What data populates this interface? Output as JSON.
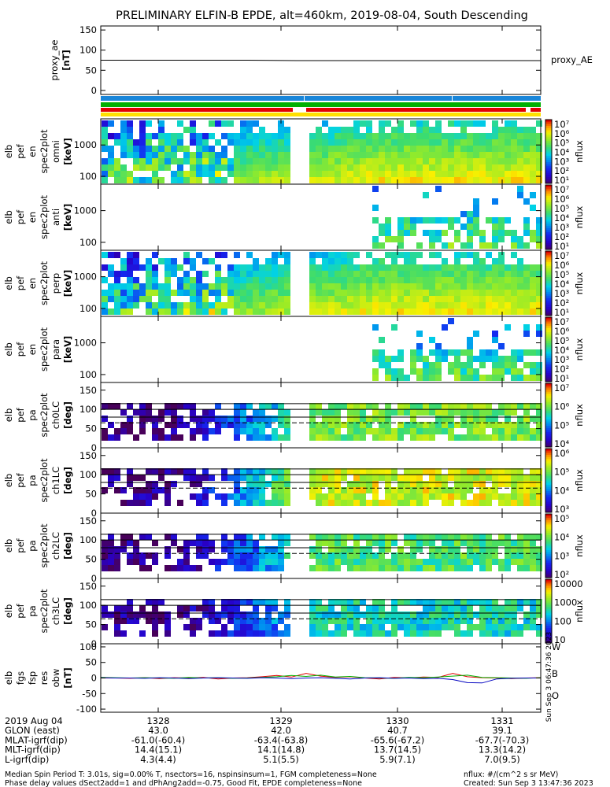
{
  "title": "PRELIMINARY ELFIN-B EPDE, alt=460km, 2019-08-04, South Descending",
  "colors": {
    "red": "#e00000",
    "green": "#00b000",
    "blue": "#0000c0",
    "bar_blue": "#1a86d9",
    "bar_yellow": "#ffe000"
  },
  "chart_data": [
    {
      "type": "line",
      "ylabel": [
        "proxy_ae",
        "[nT]"
      ],
      "yticks": [
        "150",
        "100",
        "50",
        "0"
      ],
      "ylim": [
        -10,
        160
      ],
      "series": [
        {
          "name": "proxy_AE",
          "values": [
            75,
            75,
            75,
            75,
            74,
            74,
            74,
            74,
            74,
            74
          ]
        }
      ],
      "legend": "proxy_AE"
    },
    {
      "type": "heatmap",
      "ylabel": [
        "elb",
        "pef",
        "en",
        "spec2plot",
        "omni",
        "[keV]"
      ],
      "yticks": [
        "1000",
        "100"
      ],
      "colorbar": {
        "label": "nflux",
        "ticks": [
          "10⁷",
          "10⁶",
          "10⁵",
          "10⁴",
          "10³",
          "10²",
          "10¹"
        ]
      }
    },
    {
      "type": "heatmap",
      "ylabel": [
        "elb",
        "pef",
        "en",
        "spec2plot",
        "anti",
        "[keV]"
      ],
      "yticks": [
        "1000",
        "100"
      ],
      "colorbar": {
        "label": "nflux",
        "ticks": [
          "10⁷",
          "10⁶",
          "10⁵",
          "10⁴",
          "10³",
          "10²",
          "10¹"
        ]
      }
    },
    {
      "type": "heatmap",
      "ylabel": [
        "elb",
        "pef",
        "en",
        "spec2plot",
        "perp",
        "[keV]"
      ],
      "yticks": [
        "1000",
        "100"
      ],
      "colorbar": {
        "label": "nflux",
        "ticks": [
          "10⁷",
          "10⁶",
          "10⁵",
          "10⁴",
          "10³",
          "10²",
          "10¹"
        ]
      }
    },
    {
      "type": "heatmap",
      "ylabel": [
        "elb",
        "pef",
        "en",
        "spec2plot",
        "para",
        "[keV]"
      ],
      "yticks": [
        "1000",
        "100"
      ],
      "colorbar": {
        "label": "nflux",
        "ticks": [
          "10⁷",
          "10⁶",
          "10⁵",
          "10⁴",
          "10³",
          "10²",
          "10¹"
        ]
      }
    },
    {
      "type": "heatmap",
      "ylabel": [
        "elb",
        "pef",
        "pa",
        "spec2plot",
        "ch0LC",
        "[deg]"
      ],
      "yticks": [
        "150",
        "100",
        "50",
        "0"
      ],
      "colorbar": {
        "label": "nflux",
        "ticks": [
          "10⁷",
          "10⁶",
          "10⁵",
          "10⁴"
        ]
      }
    },
    {
      "type": "heatmap",
      "ylabel": [
        "elb",
        "pef",
        "pa",
        "spec2plot",
        "ch1LC",
        "[deg]"
      ],
      "yticks": [
        "150",
        "100",
        "50",
        "0"
      ],
      "colorbar": {
        "label": "nflux",
        "ticks": [
          "10⁶",
          "10⁵",
          "10⁴",
          "10³"
        ]
      }
    },
    {
      "type": "heatmap",
      "ylabel": [
        "elb",
        "pef",
        "pa",
        "spec2plot",
        "ch2LC",
        "[deg]"
      ],
      "yticks": [
        "150",
        "100",
        "50",
        "0"
      ],
      "colorbar": {
        "label": "nflux",
        "ticks": [
          "10⁵",
          "10⁴",
          "10³",
          "10²"
        ]
      }
    },
    {
      "type": "heatmap",
      "ylabel": [
        "elb",
        "pef",
        "pa",
        "spec2plot",
        "ch3LC",
        "[deg]"
      ],
      "yticks": [
        "150",
        "100",
        "50",
        "0"
      ],
      "colorbar": {
        "label": "nflux",
        "ticks": [
          "10000",
          "1000",
          "100",
          "10"
        ]
      }
    },
    {
      "type": "line",
      "ylabel": [
        "elb",
        "fgs",
        "fsp",
        "res",
        "obw",
        "[nT]"
      ],
      "yticks": [
        "100",
        "50",
        "0",
        "-50",
        "-100"
      ],
      "ylim": [
        -110,
        110
      ],
      "series": [
        {
          "name": "W",
          "color": "#e00000",
          "values": [
            0,
            0,
            -1,
            1,
            -2,
            1,
            0,
            2,
            -3,
            0,
            1,
            4,
            8,
            3,
            15,
            6,
            2,
            4,
            0,
            -3,
            2,
            0,
            3,
            2,
            15,
            4,
            1,
            0,
            -2,
            0,
            1
          ]
        },
        {
          "name": "B",
          "color": "#00b000",
          "values": [
            2,
            1,
            0,
            1,
            0,
            -1,
            2,
            0,
            1,
            -1,
            0,
            2,
            4,
            8,
            5,
            9,
            3,
            5,
            1,
            0,
            -1,
            2,
            1,
            3,
            6,
            9,
            2,
            1,
            0,
            -1,
            1
          ]
        },
        {
          "name": "O",
          "color": "#0000c0",
          "values": [
            1,
            0,
            0,
            -1,
            1,
            0,
            -2,
            0,
            1,
            0,
            -1,
            1,
            0,
            -2,
            0,
            1,
            -1,
            -3,
            0,
            1,
            -1,
            0,
            -2,
            -1,
            -5,
            -15,
            -16,
            -3,
            -1,
            0,
            0
          ]
        }
      ],
      "legend": [
        "W",
        "B",
        "O"
      ]
    }
  ],
  "xaxis": {
    "ticks": [
      "1328",
      "1329",
      "1330",
      "1331"
    ],
    "rows": [
      {
        "label": "2019 Aug 04",
        "values": [
          "1328",
          "1329",
          "1330",
          "1331"
        ]
      },
      {
        "label": "GLON (east)",
        "values": [
          "43.0",
          "42.0",
          "40.7",
          "39.1"
        ]
      },
      {
        "label": "MLAT-igrf(dip)",
        "values": [
          "-61.0(-60.4)",
          "-63.4(-63.8)",
          "-65.6(-67.2)",
          "-67.7(-70.3)"
        ]
      },
      {
        "label": "MLT-igrf(dip)",
        "values": [
          "14.4(15.1)",
          "14.1(14.8)",
          "13.7(14.5)",
          "13.3(14.2)"
        ]
      },
      {
        "label": "L-igrf(dip)",
        "values": [
          "4.3(4.4)",
          "5.1(5.5)",
          "5.9(7.1)",
          "7.0(9.5)"
        ]
      }
    ]
  },
  "footer": {
    "line1": "Median Spin Period T: 3.01s, sig=0.00% T, nsectors=16, nspinsinsum=1, FGM completeness=None",
    "line2": "Phase delay values dSect2add=1 and dPhAng2add=-0.75, Good Fit, EPDE completeness=None",
    "units": "nflux: #/(cm^2 s sr MeV)",
    "created": "Created: Sun Sep  3 13:47:36 2023",
    "vertical_stamp": "Sun Sep  3 06:47:36 2023"
  }
}
